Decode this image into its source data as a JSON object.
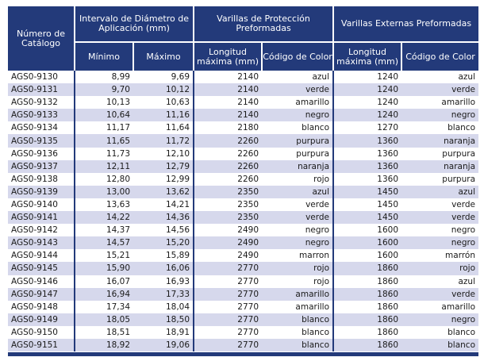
{
  "headers": {
    "catalog": "Número de Catálogo",
    "interval": "Intervalo de Diámetro de Aplicación (mm)",
    "min": "Mínimo",
    "max": "Máximo",
    "protection": "Varillas de Protección Preformadas",
    "external": "Varillas Externas Preformadas",
    "length": "Longitud máxima (mm)",
    "color": "Código de Color"
  },
  "rows": [
    {
      "cat": "AGS0-9130",
      "min": "8,99",
      "max": "9,69",
      "pl": "2140",
      "pc": "azul",
      "el": "1240",
      "ec": "azul"
    },
    {
      "cat": "AGS0-9131",
      "min": "9,70",
      "max": "10,12",
      "pl": "2140",
      "pc": "verde",
      "el": "1240",
      "ec": "verde"
    },
    {
      "cat": "AGS0-9132",
      "min": "10,13",
      "max": "10,63",
      "pl": "2140",
      "pc": "amarillo",
      "el": "1240",
      "ec": "amarillo"
    },
    {
      "cat": "AGS0-9133",
      "min": "10,64",
      "max": "11,16",
      "pl": "2140",
      "pc": "negro",
      "el": "1240",
      "ec": "negro"
    },
    {
      "cat": "AGS0-9134",
      "min": "11,17",
      "max": "11,64",
      "pl": "2180",
      "pc": "blanco",
      "el": "1270",
      "ec": "blanco"
    },
    {
      "cat": "AGS0-9135",
      "min": "11,65",
      "max": "11,72",
      "pl": "2260",
      "pc": "purpura",
      "el": "1360",
      "ec": "naranja"
    },
    {
      "cat": "AGS0-9136",
      "min": "11,73",
      "max": "12,10",
      "pl": "2260",
      "pc": "purpura",
      "el": "1360",
      "ec": "purpura"
    },
    {
      "cat": "AGS0-9137",
      "min": "12,11",
      "max": "12,79",
      "pl": "2260",
      "pc": "naranja",
      "el": "1360",
      "ec": "naranja"
    },
    {
      "cat": "AGS0-9138",
      "min": "12,80",
      "max": "12,99",
      "pl": "2260",
      "pc": "rojo",
      "el": "1360",
      "ec": "purpura"
    },
    {
      "cat": "AGS0-9139",
      "min": "13,00",
      "max": "13,62",
      "pl": "2350",
      "pc": "azul",
      "el": "1450",
      "ec": "azul"
    },
    {
      "cat": "AGS0-9140",
      "min": "13,63",
      "max": "14,21",
      "pl": "2350",
      "pc": "verde",
      "el": "1450",
      "ec": "verde"
    },
    {
      "cat": "AGS0-9141",
      "min": "14,22",
      "max": "14,36",
      "pl": "2350",
      "pc": "verde",
      "el": "1450",
      "ec": "verde"
    },
    {
      "cat": "AGS0-9142",
      "min": "14,37",
      "max": "14,56",
      "pl": "2490",
      "pc": "negro",
      "el": "1600",
      "ec": "negro"
    },
    {
      "cat": "AGS0-9143",
      "min": "14,57",
      "max": "15,20",
      "pl": "2490",
      "pc": "negro",
      "el": "1600",
      "ec": "negro"
    },
    {
      "cat": "AGS0-9144",
      "min": "15,21",
      "max": "15,89",
      "pl": "2490",
      "pc": "marron",
      "el": "1600",
      "ec": "marrón"
    },
    {
      "cat": "AGS0-9145",
      "min": "15,90",
      "max": "16,06",
      "pl": "2770",
      "pc": "rojo",
      "el": "1860",
      "ec": "rojo"
    },
    {
      "cat": "AGS0-9146",
      "min": "16,07",
      "max": "16,93",
      "pl": "2770",
      "pc": "rojo",
      "el": "1860",
      "ec": "azul"
    },
    {
      "cat": "AGS0-9147",
      "min": "16,94",
      "max": "17,33",
      "pl": "2770",
      "pc": "amarillo",
      "el": "1860",
      "ec": "verde"
    },
    {
      "cat": "AGS0-9148",
      "min": "17,34",
      "max": "18,04",
      "pl": "2770",
      "pc": "amarillo",
      "el": "1860",
      "ec": "amarillo"
    },
    {
      "cat": "AGS0-9149",
      "min": "18,05",
      "max": "18,50",
      "pl": "2770",
      "pc": "blanco",
      "el": "1860",
      "ec": "negro"
    },
    {
      "cat": "AGS0-9150",
      "min": "18,51",
      "max": "18,91",
      "pl": "2770",
      "pc": "blanco",
      "el": "1860",
      "ec": "blanco"
    },
    {
      "cat": "AGS0-9151",
      "min": "18,92",
      "max": "19,06",
      "pl": "2770",
      "pc": "blanco",
      "el": "1860",
      "ec": "blanco"
    }
  ],
  "colors": {
    "header_bg": "#233a7a",
    "row_alt": "#d6d8ec"
  }
}
